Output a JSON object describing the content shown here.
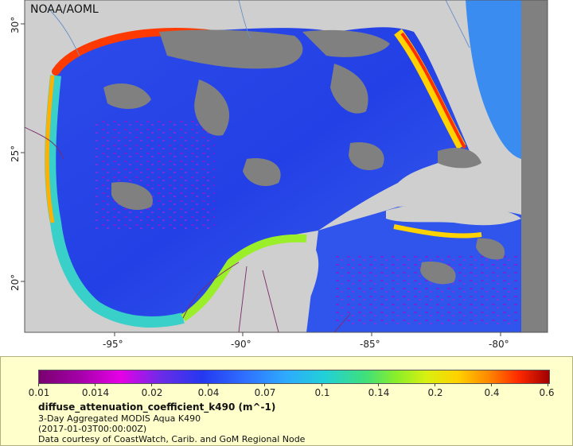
{
  "map": {
    "credit": "NOAA/AOML",
    "colors": {
      "land": "#cfcfcf",
      "no_data": "#808080",
      "border_lines": "#7b2a6a",
      "rivers": "#6a8fc8"
    },
    "lat_ticks": [
      "30°",
      "25°",
      "20°"
    ],
    "lon_ticks": [
      "-95°",
      "-90°",
      "-85°",
      "-80°"
    ]
  },
  "legend": {
    "ticks": [
      "0.01",
      "0.014",
      "0.02",
      "0.04",
      "0.07",
      "0.1",
      "0.14",
      "0.2",
      "0.4",
      "0.6"
    ],
    "variable": "diffuse_attenuation_coefficient_k490 (m^-1)",
    "product": "3-Day Aggregated MODIS Aqua K490",
    "time": "(2017-01-03T00:00:00Z)",
    "source": "Data courtesy of CoastWatch, Carib. and GoM Regional Node"
  }
}
